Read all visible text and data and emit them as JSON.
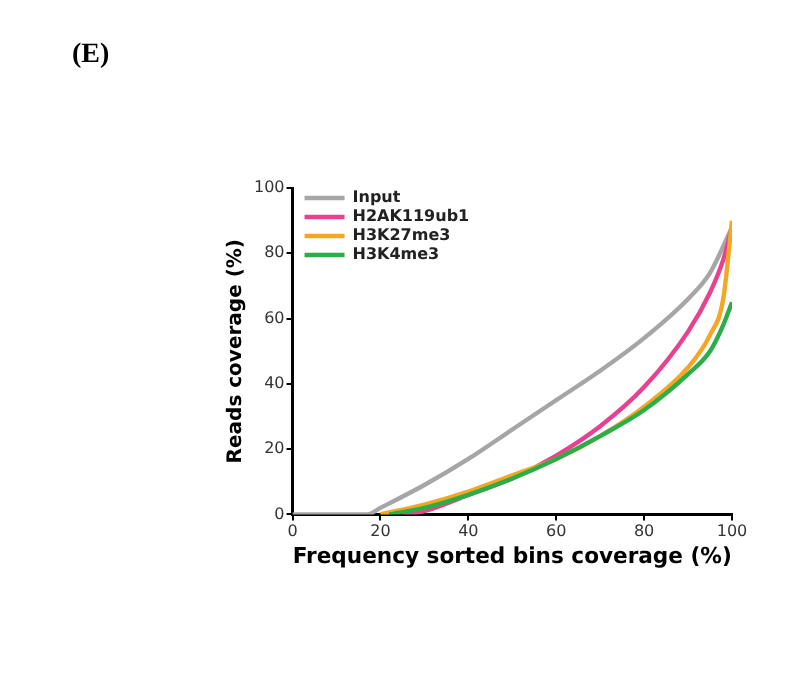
{
  "chart_data": {
    "type": "line",
    "title": "(E)",
    "xlabel": "Frequency sorted bins coverage (%)",
    "ylabel": "Reads coverage (%)",
    "xlim": [
      0,
      100
    ],
    "ylim": [
      0,
      100
    ],
    "xticks": [
      0,
      20,
      40,
      60,
      80,
      100
    ],
    "yticks": [
      0,
      20,
      40,
      60,
      80,
      100
    ],
    "grid": false,
    "legend": "top left",
    "marker": "none",
    "line_style": "solid",
    "series": [
      {
        "name": "Input",
        "color": "#a6a6a6",
        "x": [
          0,
          10,
          17,
          20,
          30,
          40,
          50,
          60,
          70,
          80,
          90,
          95,
          100
        ],
        "values": [
          0,
          0,
          0,
          2,
          9,
          17,
          26,
          35,
          44,
          54,
          66,
          74,
          88
        ]
      },
      {
        "name": "H2AK119ub1",
        "color": "#e8418f",
        "x": [
          25,
          30,
          40,
          50,
          60,
          70,
          80,
          90,
          95,
          98,
          100
        ],
        "values": [
          0,
          1,
          6,
          11,
          18,
          27,
          39,
          56,
          68,
          78,
          88
        ]
      },
      {
        "name": "H3K27me3",
        "color": "#f5a623",
        "x": [
          20,
          30,
          40,
          50,
          60,
          70,
          80,
          90,
          95,
          98,
          100
        ],
        "values": [
          0,
          3,
          7,
          12,
          17,
          24,
          33,
          45,
          55,
          66,
          90
        ]
      },
      {
        "name": "H3K4me3",
        "color": "#2bae4a",
        "x": [
          22,
          30,
          40,
          50,
          60,
          70,
          80,
          90,
          95,
          98,
          100
        ],
        "values": [
          0,
          2,
          6,
          11,
          17,
          24,
          32,
          43,
          50,
          58,
          65
        ]
      }
    ]
  }
}
